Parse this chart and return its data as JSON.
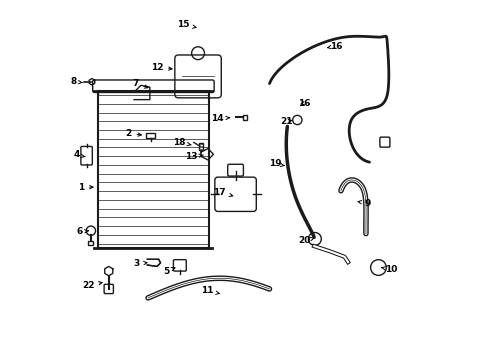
{
  "title": "",
  "background_color": "#ffffff",
  "line_color": "#1a1a1a",
  "label_color": "#000000",
  "figsize": [
    4.89,
    3.6
  ],
  "dpi": 100,
  "label_positions": {
    "1": [
      0.042,
      0.48,
      0.087,
      0.48
    ],
    "2": [
      0.175,
      0.63,
      0.222,
      0.625
    ],
    "3": [
      0.198,
      0.265,
      0.238,
      0.27
    ],
    "4": [
      0.03,
      0.57,
      0.055,
      0.565
    ],
    "5": [
      0.28,
      0.245,
      0.308,
      0.255
    ],
    "6": [
      0.038,
      0.355,
      0.065,
      0.358
    ],
    "7": [
      0.195,
      0.77,
      0.24,
      0.755
    ],
    "8": [
      0.022,
      0.775,
      0.055,
      0.772
    ],
    "9": [
      0.845,
      0.435,
      0.815,
      0.44
    ],
    "10": [
      0.91,
      0.25,
      0.882,
      0.255
    ],
    "11": [
      0.395,
      0.19,
      0.44,
      0.18
    ],
    "12": [
      0.255,
      0.815,
      0.308,
      0.81
    ],
    "13": [
      0.352,
      0.565,
      0.385,
      0.57
    ],
    "14": [
      0.425,
      0.672,
      0.468,
      0.675
    ],
    "15": [
      0.328,
      0.935,
      0.375,
      0.925
    ],
    "16": [
      0.758,
      0.875,
      0.73,
      0.87
    ],
    "16b": [
      0.668,
      0.715,
      0.648,
      0.71
    ],
    "17": [
      0.43,
      0.465,
      0.47,
      0.455
    ],
    "18": [
      0.318,
      0.605,
      0.352,
      0.598
    ],
    "19": [
      0.585,
      0.545,
      0.613,
      0.54
    ],
    "20": [
      0.668,
      0.33,
      0.697,
      0.338
    ],
    "21": [
      0.618,
      0.665,
      0.643,
      0.668
    ],
    "22": [
      0.062,
      0.205,
      0.112,
      0.215
    ]
  }
}
